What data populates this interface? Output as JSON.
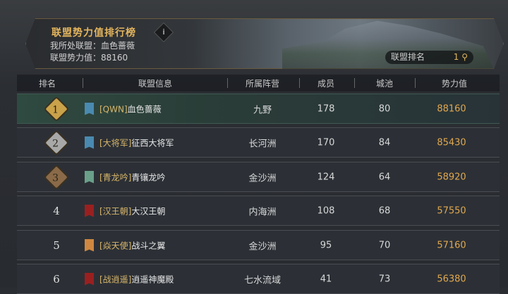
{
  "header": {
    "title": "联盟势力值排行榜",
    "info_icon": "i",
    "my_alliance_label": "我所处联盟：",
    "my_alliance": "血色蔷薇",
    "my_power_label": "联盟势力值：",
    "my_power": "88160",
    "rank_label": "联盟排名",
    "rank_value": "1"
  },
  "columns": [
    "排名",
    "联盟信息",
    "所属阵营",
    "成员",
    "城池",
    "势力值"
  ],
  "rows": [
    {
      "rank": "1",
      "tag": "[QWN]",
      "name": "血色蔷薇",
      "faction": "九野",
      "members": "178",
      "cities": "80",
      "power": "88160",
      "flag_color": "#4a8ab0",
      "highlight": true
    },
    {
      "rank": "2",
      "tag": "[大将军]",
      "name": "征西大将军",
      "faction": "长河洲",
      "members": "170",
      "cities": "84",
      "power": "85430",
      "flag_color": "#4a8ab0"
    },
    {
      "rank": "3",
      "tag": "[青龙吟]",
      "name": "青镶龙吟",
      "faction": "金沙洲",
      "members": "124",
      "cities": "64",
      "power": "58920",
      "flag_color": "#6aa08a"
    },
    {
      "rank": "4",
      "tag": "[汉王朝]",
      "name": "大汉王朝",
      "faction": "内海洲",
      "members": "108",
      "cities": "68",
      "power": "57550",
      "flag_color": "#9a2020"
    },
    {
      "rank": "5",
      "tag": "[焱天使]",
      "name": "战斗之翼",
      "faction": "金沙洲",
      "members": "95",
      "cities": "70",
      "power": "57160",
      "flag_color": "#d08840"
    },
    {
      "rank": "6",
      "tag": "[战逍遥]",
      "name": "逍遥神魔殿",
      "faction": "七水流域",
      "members": "41",
      "cities": "73",
      "power": "56380",
      "flag_color": "#9a2020"
    }
  ]
}
